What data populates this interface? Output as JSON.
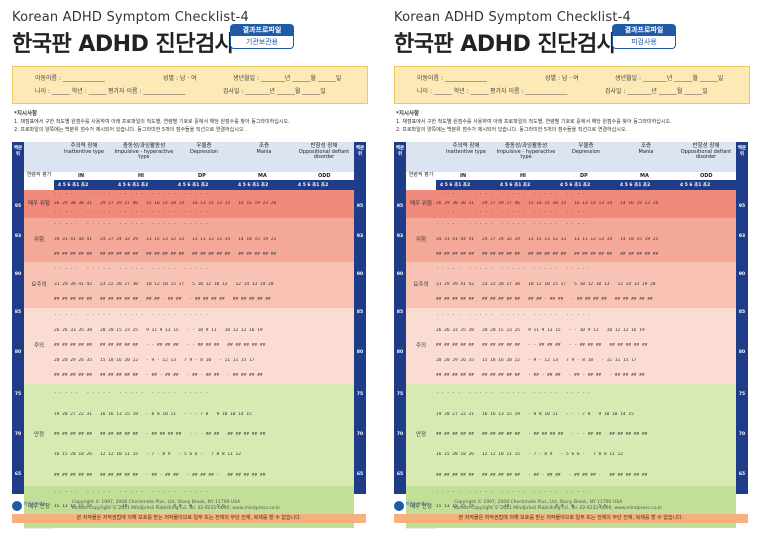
{
  "sheets": [
    {
      "title_en": "Korean ADHD Symptom Checklist-4",
      "title_ko": "한국판 ADHD 진단검사",
      "badge_top": "결과프로파일",
      "badge_bottom": "기관보관용"
    },
    {
      "title_en": "Korean ADHD Symptom Checklist-4",
      "title_ko": "한국판 ADHD 진단검사",
      "badge_top": "결과프로파일",
      "badge_bottom": "피검사용"
    }
  ],
  "info": {
    "name": "이동이름 : ______________",
    "sex": "성별 : 남 · 여",
    "birth": "생년월일 : ________년 ______월 ______일",
    "age": "나이 : ______ 학년 : ______",
    "rater": "평가자 이름 : ______________",
    "date": "검사일 : ________년 ______월 ______일"
  },
  "instructions": {
    "heading": "*지시사항",
    "line1": "1. 채점표에서 구한 척도별 원점수를 사용하여 아래 프로파일의 척도별, 연령별 기호로 흩에서 해당 원점수를 찾아 동그라미하십시오.",
    "line2": "2. 프로파일의 양쪽에는 백분위 점수가 제시되어 있습니다. 동그라미한 5개의 점수들을 직선으로 연결하십시오."
  },
  "grid": {
    "rank_label": "백분위",
    "level_header": "연령적 평가",
    "categories": [
      {
        "ko": "주의력 장애",
        "en": "Inattentive type",
        "code": "IN"
      },
      {
        "ko": "충동성/과잉활동성",
        "en": "Impulsive - hyperactive type",
        "code": "HI"
      },
      {
        "ko": "우울증",
        "en": "Depression",
        "code": "DP"
      },
      {
        "ko": "조증",
        "en": "Mania",
        "code": "MA"
      },
      {
        "ko": "반항성 장애",
        "en": "Oppositional defiant disorder",
        "code": "ODD"
      }
    ],
    "col_heads": "4  5  6  초1 초2",
    "percentiles": [
      "95",
      "93",
      "90",
      "85",
      "80",
      "75",
      "70",
      "65"
    ],
    "levels": [
      {
        "label": "매우 위험",
        "color": "#f08a7c",
        "rows": [
          "· · · · ·   · · · · ·   · · · · ·   · · · · ·   · · · · ·",
          "26 29 30 30 31   29 27 29 27 46   15 16 14 10 14   16 13 14 13 14   14 16 19 23 20",
          "· · · · ·   · · · · ·   · · · · ·   · · · · ·   · · · · ·"
        ]
      },
      {
        "label": "위험",
        "color": "#f4a898",
        "rows": [
          "· · · · ·   · · · · ·   · · · · ·   · · · · ·   · · · · ·",
          "34 31 41 44 41   24 27 24 32 29   13 15 13 12 13   13 11 12 13 14   14 18 15 19 21",
          "## ## ## ## ##   ## ## ## ## ##   ## ## ## ## ##   ## ## ## ## ##   ## ## ## ## ##"
        ]
      },
      {
        "label": "요주의",
        "color": "#f8c2b4",
        "rows": [
          "· · · · ·   · · · · ·   · · · · ·   · · · · ·   · · · · ·",
          "31 29 39 41 42   23 22 20 27 30   10 12 10 15 17   5 10 12 10 13   12 14 13 19 20",
          "## ## ## ## ##   ## ## ## ## ##   ## ## · ## ##   · ## ## ## ##   ## ## ## ## ##"
        ]
      },
      {
        "label": "주의",
        "color": "#fbdcd2",
        "rows": [
          "· · · · ·   · · · · ·   · · · · ·   · · · · ·   · · · · ·",
          "26 26 33 35 38   20 20 15 23 25   9 11 9 13 15   - - 10 9 11   10 12 12 16 19",
          "## ## ## ## ##   ## ## ## ## ##   - - ## ## ##   - - ## ## ##   ## ## ## ## ##",
          "20 20 29 26 35   15 18 16 20 22   - 9 - 12 13   7 9 - 8 10   - 11 11 15 17",
          "## ## ## ## ##   ## ## ## ## ##   - ## - ## ##   · ## - ## ##   - ## ## ## ##"
        ]
      },
      {
        "label": "안정",
        "color": "#d8eab4",
        "rows": [
          "· · · · ·   · · · · ·   · · · · ·   · · · · ·   · · · · ·",
          "19 20 27 22 31   16 16 13 15 19   - 8 8 10 11   - - - 7 8   9 10 10 14 15",
          "## ## ## ## ##   ## ## ## ## ##   - ## ## ## ##   - - - ## ##   ## ## ## ## ##",
          "16 15 20 18 26   12 12 10 11 15   - 7 - 8 9   - 5 6 6 -   7 8 8 11 12",
          "## ## ## ## ##   ## ## ## ## ##   - ## - ## ##   - ## ## ## -   ## ## ## ## ##"
        ]
      },
      {
        "label": "매우 안정",
        "color": "#c2df98",
        "rows": [
          "· · · · ·   · · · · ·   · · · · ·   · · · · ·   · · · · ·",
          "15 13 15 15 15   - - - - 14   - - - - -   - 4 4 - 6   - - - 5 5",
          "· ## ## - ·   · · · · ·   · · · · ·   · · · · ·   · · · ## ##"
        ]
      }
    ]
  },
  "footer": {
    "logo_text": "마인드프레스",
    "copy1": "Copyright © 1997, 2008 Checkmate Plus, Ltd, Stony Brook, NY 11790 USA",
    "copy2": "Korean Copyright © 2011 Mindpress Publishing Co. Tel. 02-6231-0690, www.mindpress.co.kr",
    "warning": "본 저작물은 저작권법에 의해 보호를 받는 저작물이므로 일부 또는 전체의 무단 전재, 복제를 할 수 없습니다."
  },
  "colors": {
    "accent": "#1f3c88",
    "badge": "#1f5aa8",
    "info_bg": "#fde9b6",
    "warn_bg": "#f5b07e"
  }
}
